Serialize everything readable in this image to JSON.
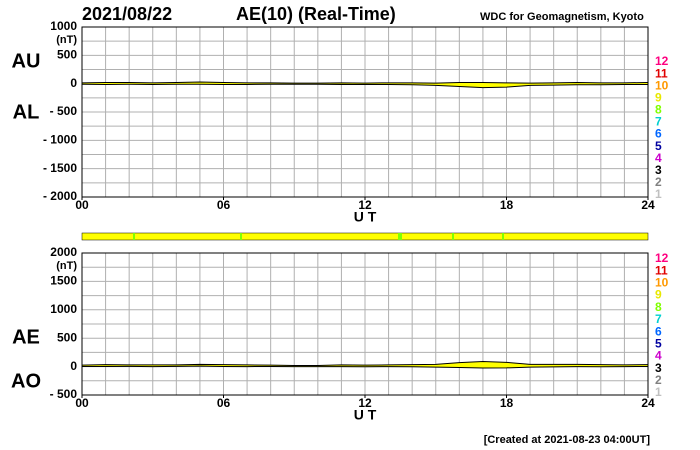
{
  "header": {
    "date": "2021/08/22",
    "title": "AE(10) (Real-Time)",
    "source": "WDC for Geomagnetism, Kyoto"
  },
  "footer": "[Created at 2021-08-23 04:00UT]",
  "chart_data": [
    {
      "type": "line",
      "ylabel": "(nT)",
      "xlabel": "U T",
      "grid": true,
      "fill": "#ffff00",
      "xlim": [
        0,
        24
      ],
      "xticks": [
        {
          "value": 0,
          "label": "00"
        },
        {
          "value": 6,
          "label": "06"
        },
        {
          "value": 12,
          "label": "12"
        },
        {
          "value": 18,
          "label": "18"
        },
        {
          "value": 24,
          "label": "24"
        }
      ],
      "ylim": [
        -2000,
        1000
      ],
      "yticks": [
        1000,
        500,
        0,
        {
          "value": -500,
          "label": "- 500"
        },
        {
          "value": -1000,
          "label": "- 1000"
        },
        {
          "value": -1500,
          "label": "- 1500"
        },
        {
          "value": -2000,
          "label": "- 2000"
        }
      ],
      "x": [
        0,
        1,
        2,
        3,
        4,
        5,
        6,
        7,
        8,
        9,
        10,
        11,
        12,
        13,
        14,
        15,
        16,
        17,
        18,
        19,
        20,
        21,
        22,
        23,
        24
      ],
      "series": [
        {
          "name": "AU",
          "color": "#000000",
          "values": [
            15,
            20,
            20,
            15,
            20,
            30,
            20,
            15,
            15,
            10,
            10,
            15,
            10,
            15,
            15,
            10,
            20,
            20,
            15,
            10,
            15,
            20,
            15,
            15,
            20
          ]
        },
        {
          "name": "AL",
          "color": "#000000",
          "values": [
            -10,
            -15,
            -10,
            -15,
            -10,
            -10,
            -15,
            -15,
            -10,
            -10,
            -10,
            -15,
            -15,
            -15,
            -20,
            -30,
            -50,
            -70,
            -60,
            -30,
            -25,
            -20,
            -20,
            -15,
            -15
          ]
        }
      ],
      "station_legend": {
        "labels": [
          12,
          11,
          10,
          9,
          8,
          7,
          6,
          5,
          4,
          3,
          2,
          1
        ],
        "colors": [
          "#ff0080",
          "#e00000",
          "#ff9900",
          "#e8e800",
          "#80ff00",
          "#00d0d0",
          "#0066ff",
          "#0000a0",
          "#cc00cc",
          "#000000",
          "#808080",
          "#c0c0c0"
        ]
      }
    },
    {
      "type": "line",
      "ylabel": "(nT)",
      "xlabel": "U T",
      "grid": true,
      "fill": "#ffff00",
      "xlim": [
        0,
        24
      ],
      "xticks": [
        {
          "value": 0,
          "label": "00"
        },
        {
          "value": 6,
          "label": "06"
        },
        {
          "value": 12,
          "label": "12"
        },
        {
          "value": 18,
          "label": "18"
        },
        {
          "value": 24,
          "label": "24"
        }
      ],
      "ylim": [
        -500,
        2000
      ],
      "yticks": [
        2000,
        1500,
        1000,
        500,
        0,
        {
          "value": -500,
          "label": "- 500"
        }
      ],
      "x": [
        0,
        1,
        2,
        3,
        4,
        5,
        6,
        7,
        8,
        9,
        10,
        11,
        12,
        13,
        14,
        15,
        16,
        17,
        18,
        19,
        20,
        21,
        22,
        23,
        24
      ],
      "series": [
        {
          "name": "AE",
          "color": "#000000",
          "values": [
            25,
            35,
            30,
            30,
            30,
            40,
            35,
            30,
            25,
            20,
            20,
            30,
            25,
            30,
            35,
            40,
            70,
            90,
            75,
            40,
            40,
            40,
            35,
            30,
            35
          ]
        },
        {
          "name": "AO",
          "color": "#000000",
          "values": [
            2.5,
            2.5,
            5,
            0,
            5,
            10,
            2.5,
            0,
            2.5,
            0,
            0,
            0,
            -2.5,
            0,
            -2.5,
            -10,
            -15,
            -25,
            -22.5,
            -10,
            -5,
            0,
            -2.5,
            0,
            2.5
          ]
        }
      ],
      "station_legend": {
        "labels": [
          12,
          11,
          10,
          9,
          8,
          7,
          6,
          5,
          4,
          3,
          2,
          1
        ],
        "colors": [
          "#ff0080",
          "#e00000",
          "#ff9900",
          "#e8e800",
          "#80ff00",
          "#00d0d0",
          "#0066ff",
          "#0000a0",
          "#cc00cc",
          "#000000",
          "#808080",
          "#c0c0c0"
        ]
      }
    }
  ]
}
